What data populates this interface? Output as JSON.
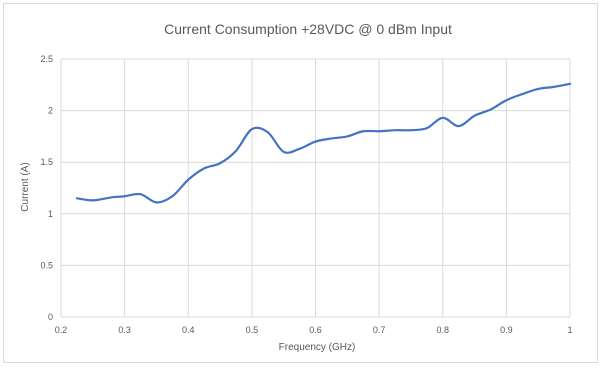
{
  "chart_data": {
    "type": "line",
    "title": "Current Consumption +28VDC @ 0 dBm Input",
    "xlabel": "Frequency (GHz)",
    "ylabel": "Current (A)",
    "xlim": [
      0.2,
      1.0
    ],
    "ylim": [
      0,
      2.5
    ],
    "x_ticks": [
      0.2,
      0.3,
      0.4,
      0.5,
      0.6,
      0.7,
      0.8,
      0.9,
      1.0
    ],
    "x_tick_labels": [
      "0.2",
      "0.3",
      "0.4",
      "0.5",
      "0.6",
      "0.7",
      "0.8",
      "0.9",
      "1"
    ],
    "y_ticks": [
      0,
      0.5,
      1,
      1.5,
      2,
      2.5
    ],
    "y_tick_labels": [
      "0",
      "0.5",
      "1",
      "1.5",
      "2",
      "2.5"
    ],
    "grid": true,
    "legend": "none",
    "series": [
      {
        "color": "#4472c4",
        "x": [
          0.225,
          0.25,
          0.28,
          0.3,
          0.325,
          0.35,
          0.375,
          0.4,
          0.425,
          0.45,
          0.475,
          0.5,
          0.525,
          0.55,
          0.575,
          0.6,
          0.625,
          0.65,
          0.675,
          0.7,
          0.725,
          0.75,
          0.775,
          0.8,
          0.825,
          0.85,
          0.875,
          0.9,
          0.925,
          0.95,
          0.975,
          1.0
        ],
        "y": [
          1.15,
          1.13,
          1.16,
          1.17,
          1.19,
          1.11,
          1.17,
          1.33,
          1.44,
          1.49,
          1.61,
          1.82,
          1.79,
          1.6,
          1.63,
          1.7,
          1.73,
          1.75,
          1.8,
          1.8,
          1.81,
          1.81,
          1.83,
          1.93,
          1.85,
          1.95,
          2.01,
          2.1,
          2.16,
          2.21,
          2.23,
          2.26
        ]
      }
    ]
  }
}
